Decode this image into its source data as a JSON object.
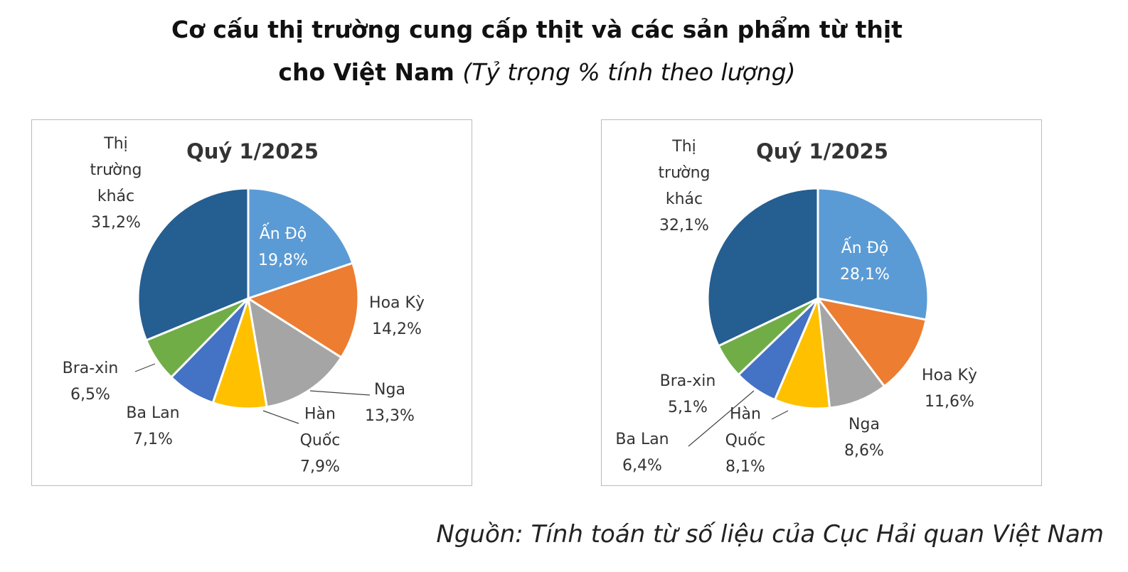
{
  "title": [
    "Cơ cấu thị trường cung cấp thịt và các sản phẩm từ thịt",
    "cho Việt Nam"
  ],
  "subtitle": "(Tỷ trọng % tính theo lượng)",
  "source": "Nguồn: Tính toán từ số liệu của Cục Hải quan Việt Nam",
  "chart_data": [
    {
      "type": "pie",
      "title": "Quý 1/2025",
      "categories": [
        "Ấn Độ",
        "Hoa Kỳ",
        "Nga",
        "Hàn Quốc",
        "Ba Lan",
        "Bra-xin",
        "Thị trường khác"
      ],
      "values": [
        19.8,
        14.2,
        13.3,
        7.9,
        7.1,
        6.5,
        31.2
      ],
      "value_labels": [
        "19,8%",
        "14,2%",
        "13,3%",
        "7,9%",
        "7,1%",
        "6,5%",
        "31,2%"
      ],
      "colors": [
        "#5b9bd5",
        "#ed7d31",
        "#a5a5a5",
        "#ffc000",
        "#4472c4",
        "#70ad47",
        "#255e91"
      ]
    },
    {
      "type": "pie",
      "title": "Quý 1/2025",
      "categories": [
        "Ấn Độ",
        "Hoa Kỳ",
        "Nga",
        "Hàn Quốc",
        "Ba Lan",
        "Bra-xin",
        "Thị trường khác"
      ],
      "values": [
        28.1,
        11.6,
        8.6,
        8.1,
        6.4,
        5.1,
        32.1
      ],
      "value_labels": [
        "28,1%",
        "11,6%",
        "8,6%",
        "8,1%",
        "6,4%",
        "5,1%",
        "32,1%"
      ],
      "colors": [
        "#5b9bd5",
        "#ed7d31",
        "#a5a5a5",
        "#ffc000",
        "#4472c4",
        "#70ad47",
        "#255e91"
      ]
    }
  ]
}
